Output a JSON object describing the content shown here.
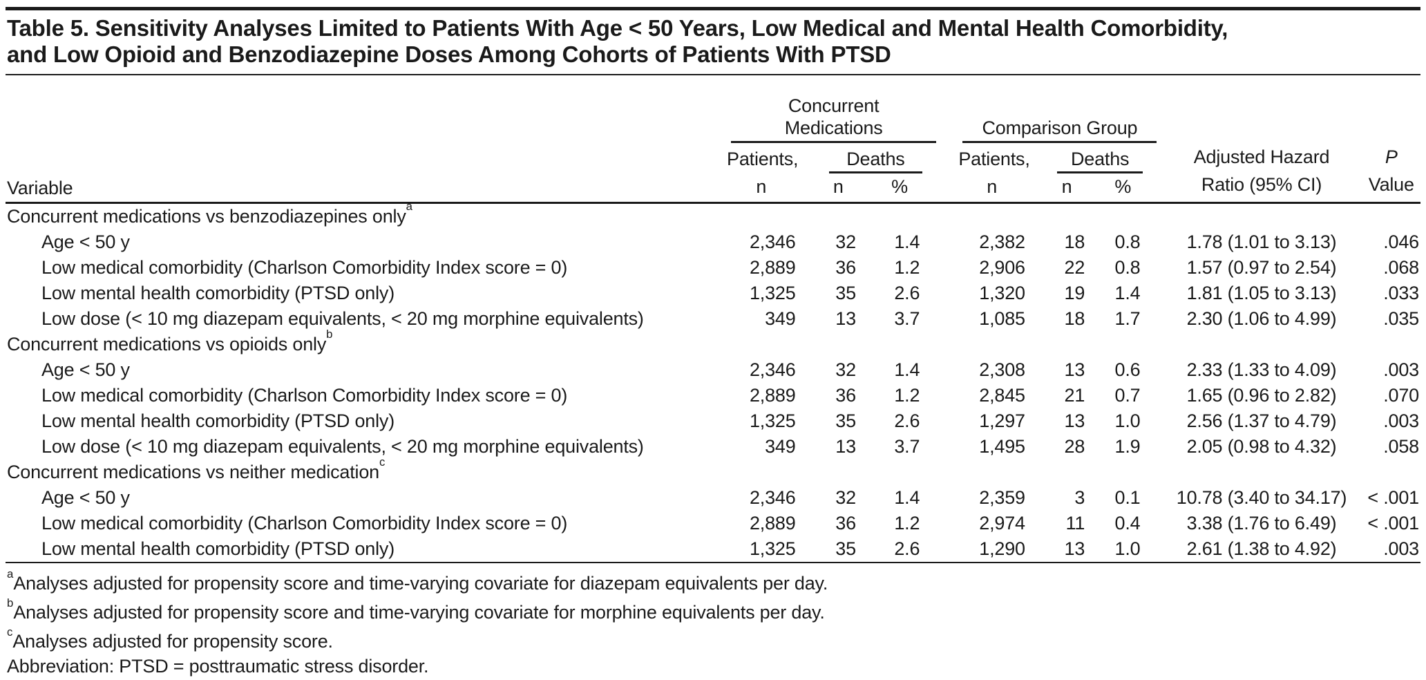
{
  "table": {
    "title_line1": "Table 5. Sensitivity Analyses Limited to Patients With Age < 50 Years, Low Medical and Mental Health Comorbidity,",
    "title_line2": "and Low Opioid and Benzodiazepine Doses Among Cohorts of Patients With PTSD",
    "header": {
      "variable": "Variable",
      "group1_line1": "Concurrent",
      "group1_line2": "Medications",
      "group2": "Comparison Group",
      "patients_label": "Patients,",
      "patients_sub": "n",
      "deaths_label": "Deaths",
      "deaths_n": "n",
      "deaths_pct": "%",
      "ahr_line1": "Adjusted Hazard",
      "ahr_line2": "Ratio (95% CI)",
      "p_line1": "P",
      "p_line2": "Value"
    },
    "sections": [
      {
        "label": "Concurrent medications vs benzodiazepines only",
        "marker": "a",
        "rows": [
          {
            "variable": "Age < 50 y",
            "cm_n": "2,346",
            "cm_dn": "32",
            "cm_dp": "1.4",
            "cg_n": "2,382",
            "cg_dn": "18",
            "cg_dp": "0.8",
            "ahr": "1.78 (1.01 to 3.13)",
            "p": ".046"
          },
          {
            "variable": "Low medical comorbidity (Charlson Comorbidity Index score = 0)",
            "cm_n": "2,889",
            "cm_dn": "36",
            "cm_dp": "1.2",
            "cg_n": "2,906",
            "cg_dn": "22",
            "cg_dp": "0.8",
            "ahr": "1.57 (0.97 to 2.54)",
            "p": ".068"
          },
          {
            "variable": "Low mental health comorbidity (PTSD only)",
            "cm_n": "1,325",
            "cm_dn": "35",
            "cm_dp": "2.6",
            "cg_n": "1,320",
            "cg_dn": "19",
            "cg_dp": "1.4",
            "ahr": "1.81 (1.05 to 3.13)",
            "p": ".033"
          },
          {
            "variable": "Low dose (< 10 mg diazepam equivalents, < 20 mg morphine equivalents)",
            "cm_n": "349",
            "cm_dn": "13",
            "cm_dp": "3.7",
            "cg_n": "1,085",
            "cg_dn": "18",
            "cg_dp": "1.7",
            "ahr": "2.30 (1.06 to 4.99)",
            "p": ".035"
          }
        ]
      },
      {
        "label": "Concurrent medications vs opioids only",
        "marker": "b",
        "rows": [
          {
            "variable": "Age < 50 y",
            "cm_n": "2,346",
            "cm_dn": "32",
            "cm_dp": "1.4",
            "cg_n": "2,308",
            "cg_dn": "13",
            "cg_dp": "0.6",
            "ahr": "2.33 (1.33 to 4.09)",
            "p": ".003"
          },
          {
            "variable": "Low medical comorbidity (Charlson Comorbidity Index score = 0)",
            "cm_n": "2,889",
            "cm_dn": "36",
            "cm_dp": "1.2",
            "cg_n": "2,845",
            "cg_dn": "21",
            "cg_dp": "0.7",
            "ahr": "1.65 (0.96 to 2.82)",
            "p": ".070"
          },
          {
            "variable": "Low mental health comorbidity (PTSD only)",
            "cm_n": "1,325",
            "cm_dn": "35",
            "cm_dp": "2.6",
            "cg_n": "1,297",
            "cg_dn": "13",
            "cg_dp": "1.0",
            "ahr": "2.56 (1.37 to 4.79)",
            "p": ".003"
          },
          {
            "variable": "Low dose (< 10 mg diazepam equivalents, < 20 mg morphine equivalents)",
            "cm_n": "349",
            "cm_dn": "13",
            "cm_dp": "3.7",
            "cg_n": "1,495",
            "cg_dn": "28",
            "cg_dp": "1.9",
            "ahr": "2.05 (0.98 to 4.32)",
            "p": ".058"
          }
        ]
      },
      {
        "label": "Concurrent medications vs neither medication",
        "marker": "c",
        "rows": [
          {
            "variable": "Age < 50 y",
            "cm_n": "2,346",
            "cm_dn": "32",
            "cm_dp": "1.4",
            "cg_n": "2,359",
            "cg_dn": "3",
            "cg_dp": "0.1",
            "ahr": "10.78 (3.40 to 34.17)",
            "p": "< .001"
          },
          {
            "variable": "Low medical comorbidity (Charlson Comorbidity Index score = 0)",
            "cm_n": "2,889",
            "cm_dn": "36",
            "cm_dp": "1.2",
            "cg_n": "2,974",
            "cg_dn": "11",
            "cg_dp": "0.4",
            "ahr": "3.38 (1.76 to 6.49)",
            "p": "< .001"
          },
          {
            "variable": "Low mental health comorbidity (PTSD only)",
            "cm_n": "1,325",
            "cm_dn": "35",
            "cm_dp": "2.6",
            "cg_n": "1,290",
            "cg_dn": "13",
            "cg_dp": "1.0",
            "ahr": "2.61 (1.38 to 4.92)",
            "p": ".003"
          }
        ]
      }
    ],
    "footnotes": [
      {
        "marker": "a",
        "text": "Analyses adjusted for propensity score and time-varying covariate for diazepam equivalents per day."
      },
      {
        "marker": "b",
        "text": "Analyses adjusted for propensity score and time-varying covariate for morphine equivalents per day."
      },
      {
        "marker": "c",
        "text": "Analyses adjusted for propensity score."
      },
      {
        "marker": "",
        "text": "Abbreviation: PTSD = posttraumatic stress disorder."
      }
    ]
  }
}
